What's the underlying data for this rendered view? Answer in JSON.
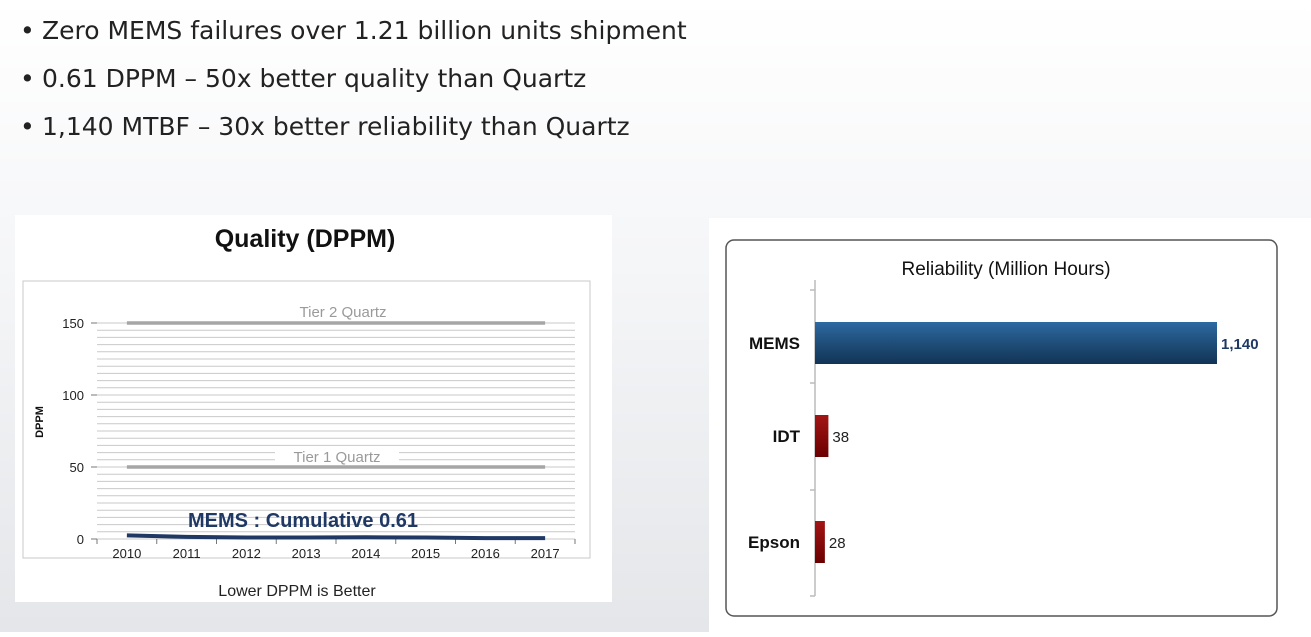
{
  "bullets": [
    "Zero MEMS failures over 1.21 billion units shipment",
    "0.61 DPPM – 50x better quality than Quartz",
    "1,140 MTBF – 30x better reliability than Quartz"
  ],
  "chart_data": [
    {
      "type": "line",
      "title": "Quality (DPPM)",
      "xlabel": "Lower DPPM is Better",
      "ylabel": "DPPM",
      "x": [
        "2010",
        "2011",
        "2012",
        "2013",
        "2014",
        "2015",
        "2016",
        "2017"
      ],
      "ylim": [
        0,
        150
      ],
      "yticks": [
        0,
        50,
        100,
        150
      ],
      "grid": true,
      "series": [
        {
          "name": "Tier 2 Quartz",
          "values": [
            150,
            150,
            150,
            150,
            150,
            150,
            150,
            150
          ],
          "color": "#a6a6a6"
        },
        {
          "name": "Tier 1 Quartz",
          "values": [
            50,
            50,
            50,
            50,
            50,
            50,
            50,
            50
          ],
          "color": "#a6a6a6"
        },
        {
          "name": "MEMS : Cumulative 0.61",
          "values": [
            2.5,
            1.5,
            1,
            1,
            1.2,
            1,
            0.6,
            0.6
          ],
          "color": "#1f3864"
        }
      ]
    },
    {
      "type": "bar",
      "orientation": "horizontal",
      "title": "Reliability (Million Hours)",
      "categories": [
        "MEMS",
        "IDT",
        "Epson"
      ],
      "values": [
        1140,
        38,
        28
      ],
      "value_labels": [
        "1,140",
        "38",
        "28"
      ],
      "colors": [
        "#1f4e79",
        "#8b0000",
        "#8b0000"
      ],
      "grid": false
    }
  ]
}
